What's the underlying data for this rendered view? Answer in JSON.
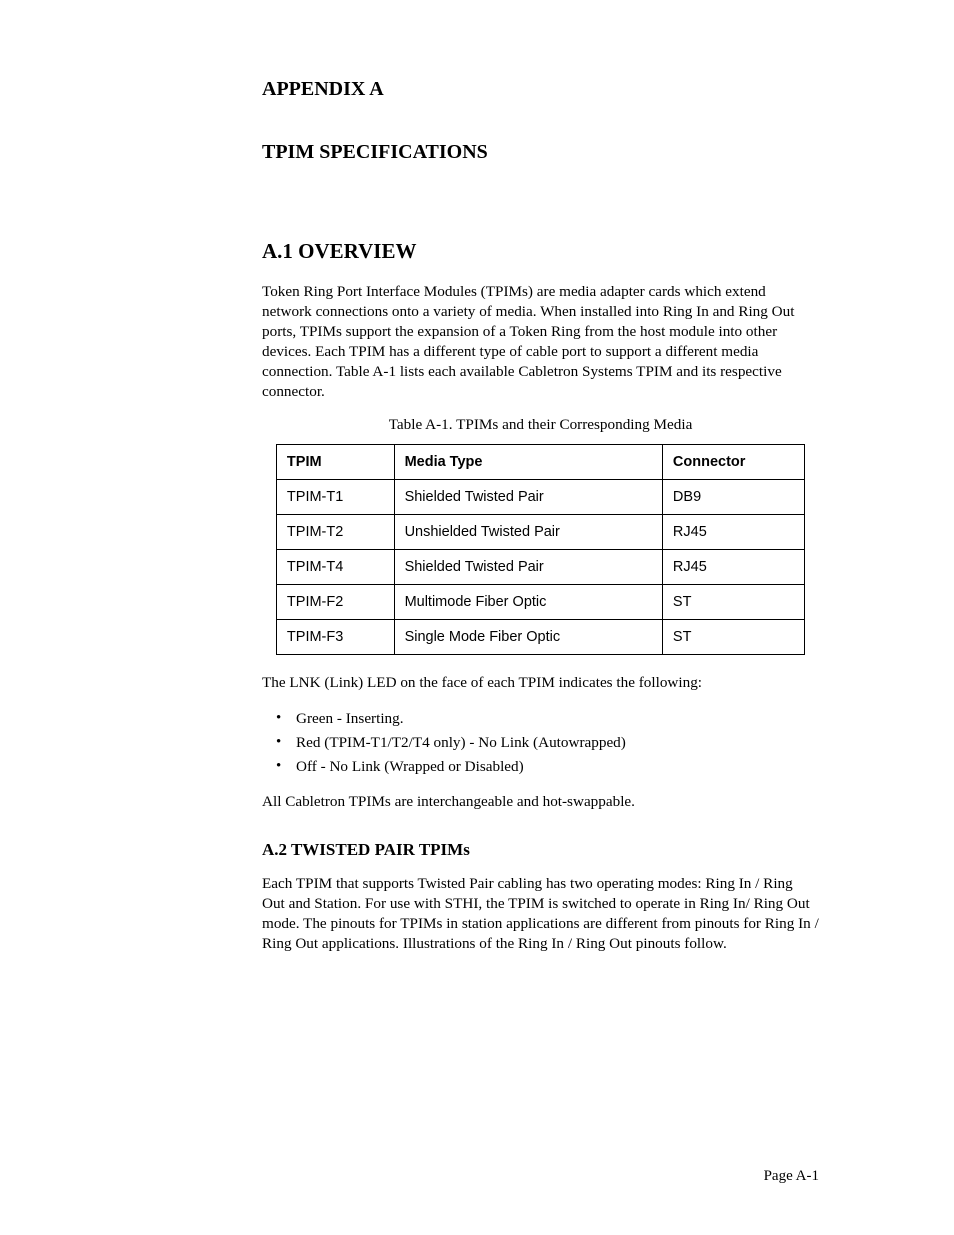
{
  "appendix_label": "APPENDIX A",
  "appendix_title": "TPIM SPECIFICATIONS",
  "section1": {
    "heading": "A.1  OVERVIEW",
    "para1": "Token Ring Port Interface Modules (TPIMs) are media adapter cards which extend network connections onto a variety of media. When installed into Ring In and Ring Out ports, TPIMs support the expansion of a Token Ring from the host module into other devices. Each TPIM has a different type of cable port to support a different media connection. Table A-1 lists each available Cabletron Systems TPIM and its respective connector.",
    "table_caption": "Table A-1.  TPIMs and their Corresponding Media",
    "table": {
      "headers": [
        "TPIM",
        "Media Type",
        "Connector"
      ],
      "rows": [
        [
          "TPIM-T1",
          "Shielded Twisted Pair",
          "DB9"
        ],
        [
          "TPIM-T2",
          "Unshielded Twisted Pair",
          "RJ45"
        ],
        [
          "TPIM-T4",
          "Shielded Twisted Pair",
          "RJ45"
        ],
        [
          "TPIM-F2",
          "Multimode Fiber Optic",
          "ST"
        ],
        [
          "TPIM-F3",
          "Single Mode Fiber Optic",
          "ST"
        ]
      ]
    },
    "para2": "The LNK (Link) LED on the face of each TPIM indicates the following:",
    "bullets": [
      "Green - Inserting.",
      "Red (TPIM-T1/T2/T4 only) - No Link (Autowrapped)",
      "Off - No Link (Wrapped or Disabled)"
    ],
    "para3": "All Cabletron TPIMs are interchangeable and hot-swappable."
  },
  "section2": {
    "heading": "A.2  TWISTED PAIR TPIMs",
    "para1": "Each TPIM that supports Twisted Pair cabling has two operating modes: Ring In / Ring Out and Station. For use with STHI, the TPIM is switched to operate in Ring In/ Ring Out mode. The pinouts for TPIMs in station applications are different from pinouts for Ring In / Ring Out applications. Illustrations of the Ring In / Ring Out pinouts follow."
  },
  "page_number": "Page A-1"
}
